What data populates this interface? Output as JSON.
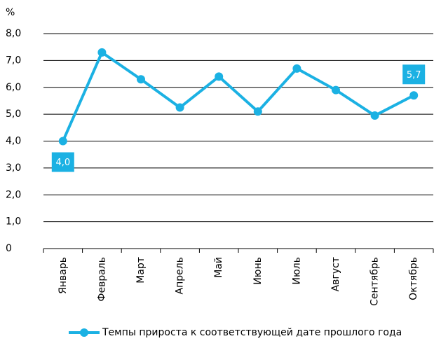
{
  "chart_data": {
    "type": "line",
    "y_unit": "%",
    "categories": [
      "Январь",
      "Февраль",
      "Март",
      "Апрель",
      "Май",
      "Июнь",
      "Июль",
      "Август",
      "Сентябрь",
      "Октябрь"
    ],
    "series": [
      {
        "name": "Темпы прироста к соответствующей дате прошлого года",
        "color": "#1bb1e3",
        "values": [
          4.0,
          7.3,
          6.3,
          5.25,
          6.4,
          5.1,
          6.7,
          5.9,
          4.95,
          5.7
        ],
        "value_labels": [
          "4,0",
          null,
          null,
          null,
          null,
          null,
          null,
          null,
          null,
          "5,7"
        ]
      }
    ],
    "ylim": [
      0,
      8
    ],
    "yticks": [
      0,
      {
        "value": 1,
        "label": "1,0"
      },
      {
        "value": 2,
        "label": "2,0"
      },
      {
        "value": 3,
        "label": "3,0"
      },
      {
        "value": 4,
        "label": "4,0"
      },
      {
        "value": 5,
        "label": "5,0"
      },
      {
        "value": 6,
        "label": "6,0"
      },
      {
        "value": 7,
        "label": "7,0"
      },
      {
        "value": 8,
        "label": "8,0"
      }
    ],
    "grid": true,
    "legend": "bottom"
  }
}
